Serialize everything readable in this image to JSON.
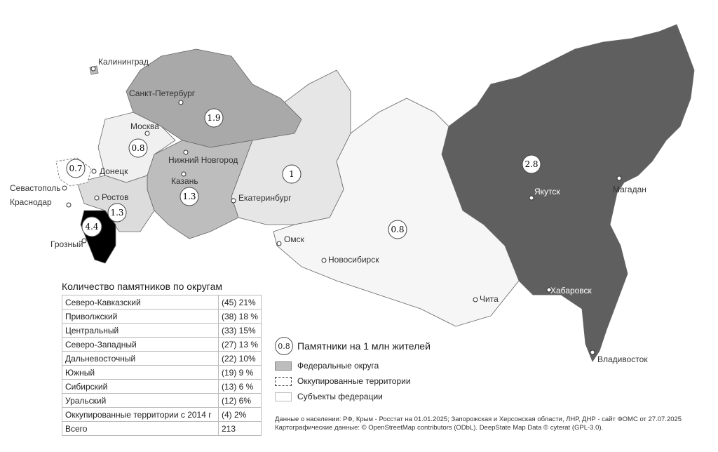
{
  "map": {
    "districts": [
      {
        "name": "Северо-Западный",
        "value": "1.9",
        "color": "#a9a9a9"
      },
      {
        "name": "Центральный",
        "value": "0.8",
        "color": "#f0f0f0"
      },
      {
        "name": "Приволжский",
        "value": "1.3",
        "color": "#bdbdbd"
      },
      {
        "name": "Южный",
        "value": "1.3",
        "color": "#dcdcdc"
      },
      {
        "name": "Северо-Кавказский",
        "value": "4.4",
        "color": "#000000"
      },
      {
        "name": "Оккупированные территории",
        "value": "0.7",
        "color": "#ffffff"
      },
      {
        "name": "Уральский",
        "value": "1",
        "color": "#e6e6e6"
      },
      {
        "name": "Сибирский",
        "value": "0.8",
        "color": "#f6f6f6"
      },
      {
        "name": "Дальневосточный",
        "value": "2.8",
        "color": "#5f5f5f"
      }
    ],
    "cities": [
      "Калининград",
      "Санкт-Петербург",
      "Москва",
      "Нижний Новгород",
      "Казань",
      "Донецк",
      "Севастополь",
      "Ростов",
      "Краснодар",
      "Грозный",
      "Екатеринбург",
      "Омск",
      "Новосибирск",
      "Чита",
      "Якутск",
      "Магадан",
      "Хабаровск",
      "Владивосток"
    ]
  },
  "table": {
    "title": "Количество памятников по округам",
    "rows": [
      [
        "Северо-Кавказский",
        "(45) 21%"
      ],
      [
        "Приволжский",
        "(38) 18 %"
      ],
      [
        "Центральный",
        "(33) 15%"
      ],
      [
        "Северо-Западный",
        "(27) 13 %"
      ],
      [
        "Дальневосточный",
        "(22) 10%"
      ],
      [
        "Южный",
        "(19) 9 %"
      ],
      [
        "Сибирский",
        "(13) 6 %"
      ],
      [
        "Уральский",
        "(12) 6%"
      ],
      [
        "Оккупированные территории с 2014 г",
        "(4) 2%"
      ],
      [
        "Всего",
        "213"
      ]
    ]
  },
  "legend": {
    "bubble_sample": "0.8",
    "bubble_label": "Памятники на 1 млн жителей",
    "districts_label": "Федеральные округа",
    "occupied_label": "Оккупированные территории",
    "subjects_label": "Субъекты федерации"
  },
  "notes": {
    "line1": "Данные о населении: РФ, Крым - Росстат на 01.01.2025; Запорожская и Херсонская области, ЛНР, ДНР - сайт ФОМС от 27.07.2025",
    "line2": "Картографические данные: © OpenStreetMap contributors (ODbL). DeepState Map Data © cyterat (GPL-3.0)."
  }
}
